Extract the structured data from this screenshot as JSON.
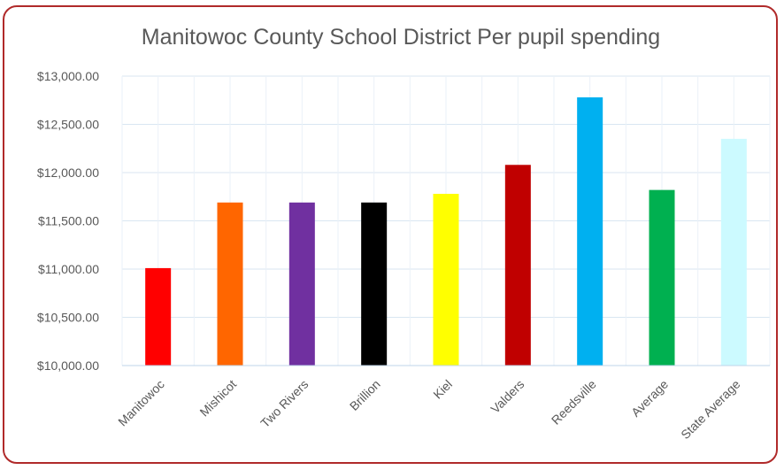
{
  "chart_data": {
    "type": "bar",
    "title": "Manitowoc County School District Per pupil spending",
    "xlabel": "",
    "ylabel": "",
    "ylim": [
      10000,
      13000
    ],
    "yticks": [
      10000,
      10500,
      11000,
      11500,
      12000,
      12500,
      13000
    ],
    "ytick_labels": [
      "$10,000.00",
      "$10,500.00",
      "$11,000.00",
      "$11,500.00",
      "$12,000.00",
      "$12,500.00",
      "$13,000.00"
    ],
    "grid": true,
    "categories": [
      "Manitowoc",
      "Mishicot",
      "Two Rivers",
      "Brillion",
      "Kiel",
      "Valders",
      "Reedsville",
      "Average",
      "State Average"
    ],
    "values": [
      11010,
      11690,
      11690,
      11690,
      11780,
      12080,
      12780,
      11820,
      12350
    ],
    "colors": [
      "#ff0000",
      "#ff6600",
      "#7030a0",
      "#000000",
      "#ffff00",
      "#c00000",
      "#00b0f0",
      "#00b050",
      "#ccfaff"
    ]
  }
}
